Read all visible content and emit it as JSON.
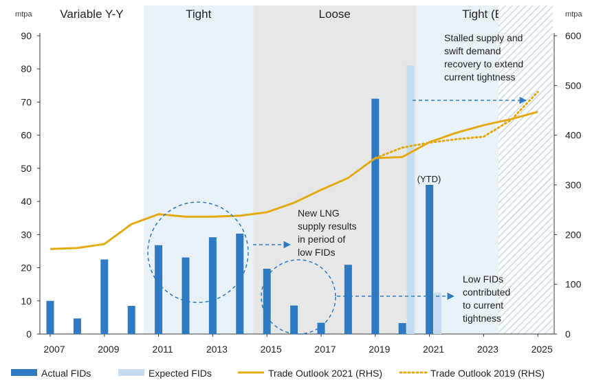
{
  "chart_data": {
    "type": "bar",
    "left_unit": "mtpa",
    "right_unit": "mtpa",
    "left_ylim": [
      0,
      90
    ],
    "left_ticks": [
      0,
      10,
      20,
      30,
      40,
      50,
      60,
      70,
      80,
      90
    ],
    "right_ylim": [
      0,
      600
    ],
    "right_ticks": [
      0,
      100,
      200,
      300,
      400,
      500,
      600
    ],
    "x_ticks": [
      "2007",
      "2009",
      "2011",
      "2013",
      "2015",
      "2017",
      "2019",
      "2021",
      "2023",
      "2025"
    ],
    "regimes": [
      {
        "label": "Variable Y-Y",
        "start": 2006.6,
        "end": 2010.45,
        "color": "#ffffff"
      },
      {
        "label": "Tight",
        "start": 2010.45,
        "end": 2014.5,
        "color": "#e9f1f9"
      },
      {
        "label": "Loose",
        "start": 2014.5,
        "end": 2020.5,
        "color": "#e7e7e7"
      },
      {
        "label": "Tight (E)",
        "start": 2020.5,
        "end": 2025.55,
        "color": "#e9f1f9"
      }
    ],
    "hatched_region": {
      "start": 2023.55,
      "end": 2025.55
    },
    "series": [
      {
        "name": "Actual FIDs",
        "kind": "bar",
        "axis": "left",
        "color": "#2e7bc4",
        "points": [
          {
            "x": 2007,
            "y": 10
          },
          {
            "x": 2008,
            "y": 4.7
          },
          {
            "x": 2009,
            "y": 22.5
          },
          {
            "x": 2010,
            "y": 8.5
          },
          {
            "x": 2011,
            "y": 26.8
          },
          {
            "x": 2012,
            "y": 23.1
          },
          {
            "x": 2013,
            "y": 29.2
          },
          {
            "x": 2014,
            "y": 30.3
          },
          {
            "x": 2015,
            "y": 19.7
          },
          {
            "x": 2016,
            "y": 8.6
          },
          {
            "x": 2017,
            "y": 3.4
          },
          {
            "x": 2018,
            "y": 20.9
          },
          {
            "x": 2019,
            "y": 71
          },
          {
            "x": 2020,
            "y": 3.3
          },
          {
            "x": 2021,
            "y": 45
          }
        ]
      },
      {
        "name": "Expected FIDs",
        "kind": "bar",
        "axis": "left",
        "color": "#c5dcf0",
        "points": [
          {
            "x": 2020,
            "y": 81
          },
          {
            "x": 2021,
            "y": 12.5
          }
        ]
      },
      {
        "name": "Trade Outlook 2021 (RHS)",
        "kind": "line",
        "axis": "right",
        "color": "#e3aa12",
        "points": [
          {
            "x": 2007,
            "y": 171
          },
          {
            "x": 2008,
            "y": 173
          },
          {
            "x": 2009,
            "y": 181
          },
          {
            "x": 2010,
            "y": 221
          },
          {
            "x": 2011,
            "y": 241
          },
          {
            "x": 2012,
            "y": 236
          },
          {
            "x": 2013,
            "y": 236
          },
          {
            "x": 2014,
            "y": 238
          },
          {
            "x": 2015,
            "y": 245
          },
          {
            "x": 2016,
            "y": 264
          },
          {
            "x": 2017,
            "y": 290
          },
          {
            "x": 2018,
            "y": 314
          },
          {
            "x": 2019,
            "y": 354
          },
          {
            "x": 2020,
            "y": 356
          },
          {
            "x": 2021,
            "y": 386
          },
          {
            "x": 2022,
            "y": 405
          },
          {
            "x": 2023,
            "y": 420
          },
          {
            "x": 2024,
            "y": 432
          },
          {
            "x": 2025,
            "y": 447
          }
        ]
      },
      {
        "name": "Trade Outlook 2019 (RHS)",
        "kind": "dotted-line",
        "axis": "right",
        "color": "#e3aa12",
        "points": [
          {
            "x": 2019,
            "y": 354
          },
          {
            "x": 2020,
            "y": 375
          },
          {
            "x": 2021,
            "y": 385
          },
          {
            "x": 2022,
            "y": 392
          },
          {
            "x": 2023,
            "y": 397
          },
          {
            "x": 2024,
            "y": 430
          },
          {
            "x": 2025,
            "y": 487
          }
        ]
      }
    ],
    "annotations": {
      "ytd": "(YTD)",
      "stalled": [
        "Stalled supply and",
        "swift demand",
        "recovery to extend",
        "current tightness"
      ],
      "new_lng": [
        "New LNG",
        "supply results",
        "in period of",
        "low FIDs"
      ],
      "low_fids": [
        "Low FIDs",
        "contributed",
        "to current",
        "tightness"
      ]
    },
    "legend": {
      "position": "bottom",
      "items": [
        {
          "label": "Actual FIDs",
          "marker": "bar",
          "color": "#2e7bc4"
        },
        {
          "label": "Expected FIDs",
          "marker": "bar",
          "color": "#c5dcf0"
        },
        {
          "label": "Trade Outlook 2021 (RHS)",
          "marker": "line",
          "color": "#e3aa12"
        },
        {
          "label": "Trade Outlook 2019 (RHS)",
          "marker": "dotted",
          "color": "#e3aa12"
        }
      ]
    }
  }
}
